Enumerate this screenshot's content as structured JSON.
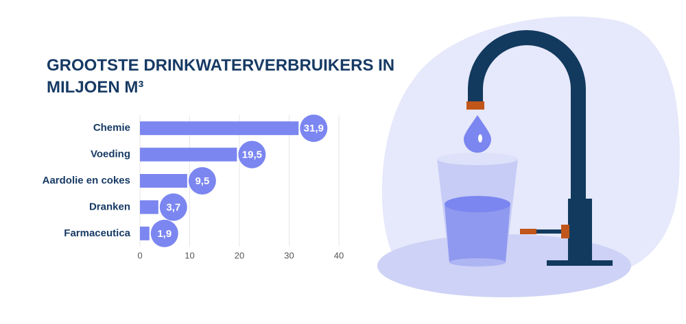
{
  "chart_data": {
    "type": "bar",
    "orientation": "horizontal",
    "title": "GROOTSTE DRINKWATERVERBRUIKERS IN MILJOEN M³",
    "categories": [
      "Chemie",
      "Voeding",
      "Aardolie en cokes",
      "Dranken",
      "Farmaceutica"
    ],
    "values": [
      31.9,
      19.5,
      9.5,
      3.7,
      1.9
    ],
    "value_labels": [
      "31,9",
      "19,5",
      "9,5",
      "3,7",
      "1,9"
    ],
    "color": "#7b86f0",
    "xlim": [
      0,
      40
    ],
    "xticks": [
      0,
      10,
      20,
      30,
      40
    ],
    "grid": true
  }
}
